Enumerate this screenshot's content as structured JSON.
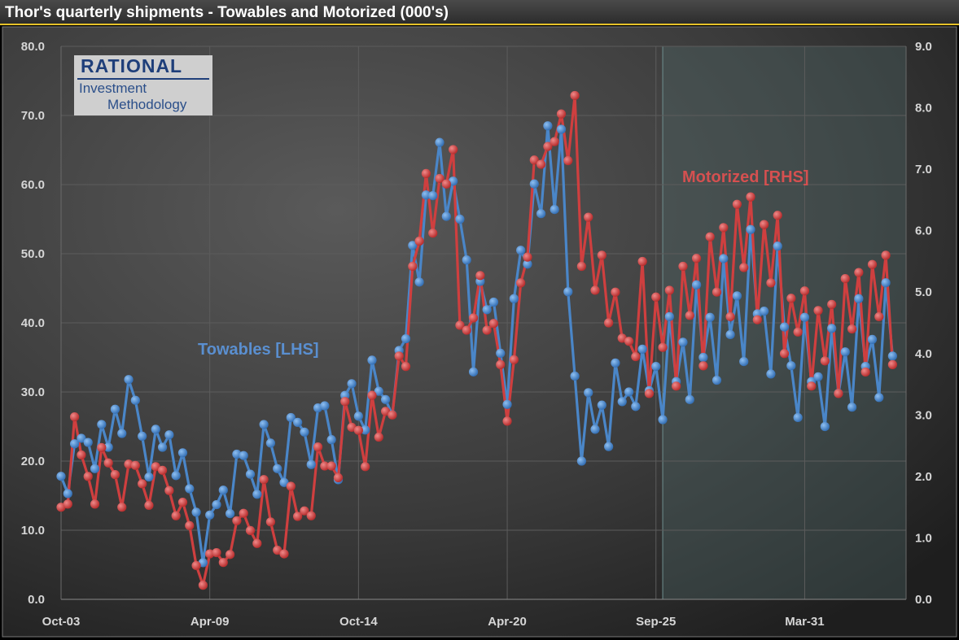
{
  "title": "Thor's quarterly shipments - Towables and Motorized (000's)",
  "logo": {
    "line1": "RATIONAL",
    "line2": "Investment",
    "line3": "Methodology"
  },
  "colors": {
    "towables": "#4a86c8",
    "motorized": "#cf3f3f",
    "towables_label": "#5a8fd0",
    "motorized_label": "#d55050"
  },
  "chart_data": {
    "type": "line",
    "title": "Thor's quarterly shipments - Towables and Motorized (000's)",
    "x_tick_labels": [
      "Oct-03",
      "Apr-09",
      "Oct-14",
      "Apr-20",
      "Sep-25",
      "Mar-31"
    ],
    "x_tick_index": [
      0,
      22,
      44,
      66,
      88,
      110
    ],
    "x_range": [
      0,
      125
    ],
    "y_left": {
      "range": [
        0,
        80
      ],
      "ticks": [
        "0.0",
        "10.0",
        "20.0",
        "30.0",
        "40.0",
        "50.0",
        "60.0",
        "70.0",
        "80.0"
      ]
    },
    "y_right": {
      "range": [
        0,
        9
      ],
      "ticks": [
        "0.0",
        "1.0",
        "2.0",
        "3.0",
        "4.0",
        "5.0",
        "6.0",
        "7.0",
        "8.0",
        "9.0"
      ]
    },
    "grid": true,
    "forecast_shade_start_index": 89,
    "series": [
      {
        "name": "Towables [LHS]",
        "axis": "left",
        "values": [
          17.8,
          15.3,
          22.5,
          23.3,
          22.7,
          18.9,
          25.3,
          22.0,
          27.5,
          24.0,
          31.8,
          28.8,
          23.6,
          17.7,
          24.6,
          22.0,
          23.8,
          17.9,
          21.2,
          16.0,
          12.6,
          5.3,
          12.2,
          13.7,
          15.8,
          12.4,
          21.0,
          20.8,
          18.1,
          15.2,
          25.3,
          22.6,
          18.9,
          16.9,
          26.3,
          25.6,
          24.2,
          19.5,
          27.7,
          28.0,
          23.1,
          17.3,
          29.5,
          31.2,
          26.5,
          24.5,
          34.6,
          30.1,
          28.9,
          26.7,
          36.0,
          37.7,
          51.2,
          45.9,
          58.5,
          58.4,
          66.1,
          55.4,
          60.5,
          55.0,
          49.1,
          32.9,
          46.0,
          41.9,
          43.0,
          35.6,
          28.2,
          43.5,
          50.5,
          48.5,
          60.1,
          55.8,
          68.5,
          56.4,
          68.0,
          44.5,
          32.3,
          20.0,
          29.9,
          24.6,
          28.1,
          22.1,
          34.2,
          28.6,
          30.0,
          27.9,
          36.2,
          30.2,
          33.7,
          26.0,
          40.9,
          31.5,
          37.2,
          28.9,
          45.5,
          35.0,
          40.8,
          31.7,
          49.3,
          38.3,
          43.9,
          34.4,
          53.5,
          41.3,
          41.7,
          32.6,
          51.1,
          39.4,
          33.8,
          26.3,
          40.8,
          31.5,
          32.2,
          25.0,
          39.2,
          29.8,
          35.8,
          27.8,
          43.5,
          33.7,
          37.6,
          29.2,
          45.8,
          35.2
        ]
      },
      {
        "name": "Motorized [RHS]",
        "axis": "right",
        "values": [
          1.5,
          1.55,
          2.97,
          2.35,
          2.0,
          1.55,
          2.47,
          2.22,
          2.03,
          1.5,
          2.2,
          2.18,
          1.88,
          1.53,
          2.16,
          2.1,
          1.77,
          1.36,
          1.58,
          1.2,
          0.55,
          0.23,
          0.74,
          0.76,
          0.6,
          0.73,
          1.28,
          1.4,
          1.12,
          0.91,
          1.95,
          1.26,
          0.8,
          0.74,
          1.84,
          1.35,
          1.44,
          1.36,
          2.48,
          2.17,
          2.17,
          1.98,
          3.22,
          2.8,
          2.75,
          2.16,
          3.32,
          2.64,
          3.06,
          3.0,
          3.96,
          3.79,
          5.42,
          5.83,
          6.93,
          5.96,
          6.85,
          6.76,
          7.32,
          4.46,
          4.38,
          4.58,
          5.27,
          4.38,
          4.49,
          3.82,
          2.9,
          3.9,
          5.15,
          5.57,
          7.15,
          7.08,
          7.37,
          7.45,
          7.9,
          7.14,
          8.2,
          5.42,
          6.22,
          5.03,
          5.6,
          4.5,
          5.0,
          4.25,
          4.2,
          3.95,
          5.5,
          3.35,
          4.92,
          4.1,
          5.03,
          3.47,
          5.42,
          4.62,
          5.55,
          3.8,
          5.9,
          5.0,
          6.05,
          4.6,
          6.43,
          5.4,
          6.55,
          4.55,
          6.1,
          5.15,
          6.25,
          4.0,
          4.9,
          4.35,
          5.02,
          3.47,
          4.7,
          3.88,
          4.8,
          3.35,
          5.22,
          4.4,
          5.32,
          3.7,
          5.45,
          4.6,
          5.6,
          3.82
        ]
      }
    ],
    "annotations": [
      "Towables [LHS]",
      "Motorized [RHS]"
    ]
  }
}
